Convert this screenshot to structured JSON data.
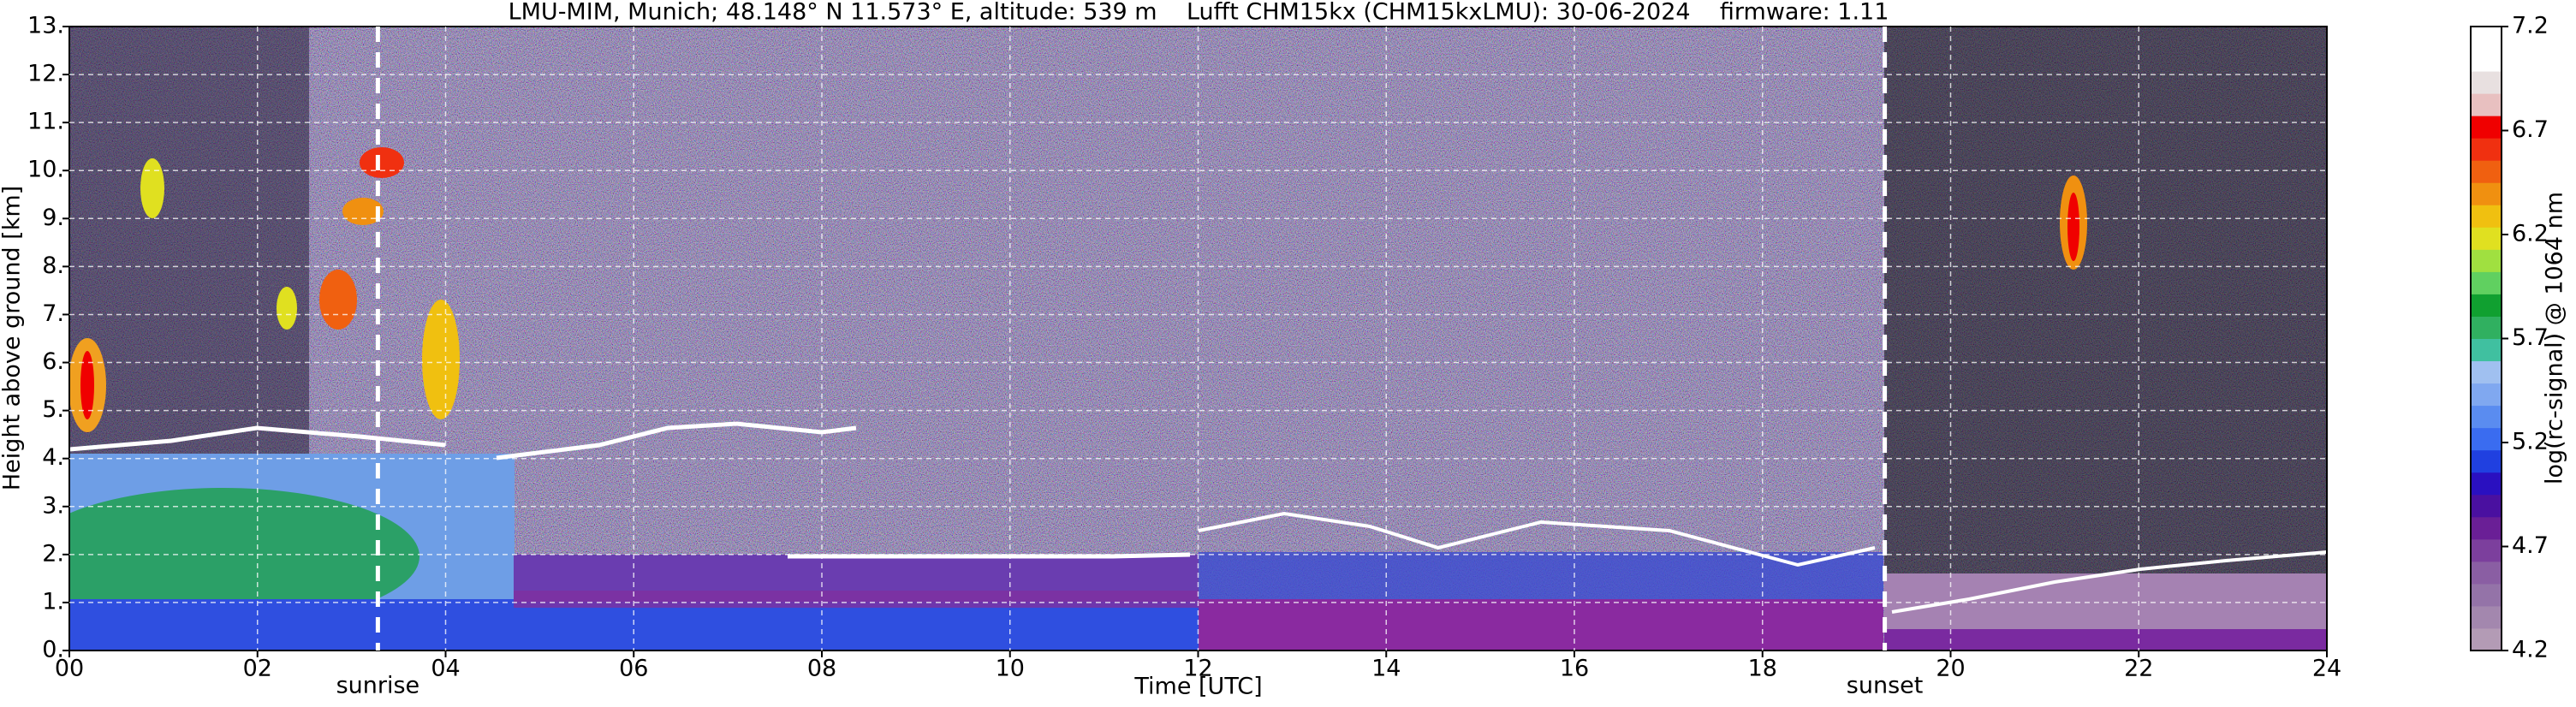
{
  "chart_data": {
    "type": "heatmap",
    "title": "LMU-MIM, Munich; 48.148° N 11.573° E, altitude: 539 m    Lufft CHM15kx (CHM15kxLMU): 30-06-2024    firmware: 1.11",
    "x_label": "Time [UTC]",
    "y_label": "Height above ground [km]",
    "xlim": [
      0,
      24
    ],
    "xticks": [
      {
        "value": 0,
        "label": "00"
      },
      {
        "value": 2,
        "label": "02"
      },
      {
        "value": 4,
        "label": "04"
      },
      {
        "value": 6,
        "label": "06"
      },
      {
        "value": 8,
        "label": "08"
      },
      10,
      12,
      14,
      16,
      18,
      20,
      22,
      24
    ],
    "ylim": [
      0,
      13
    ],
    "yticks": [
      {
        "value": 0,
        "label": "0."
      },
      {
        "value": 1,
        "label": "1."
      },
      {
        "value": 2,
        "label": "2."
      },
      {
        "value": 3,
        "label": "3."
      },
      {
        "value": 4,
        "label": "4."
      },
      {
        "value": 5,
        "label": "5."
      },
      {
        "value": 6,
        "label": "6."
      },
      {
        "value": 7,
        "label": "7."
      },
      {
        "value": 8,
        "label": "8."
      },
      {
        "value": 9,
        "label": "9."
      },
      {
        "value": 10,
        "label": "10."
      },
      {
        "value": 11,
        "label": "11."
      },
      {
        "value": 12,
        "label": "12."
      },
      {
        "value": 13,
        "label": "13."
      }
    ],
    "grid": true,
    "colorbar": {
      "label": "log(rc-signal) @ 1064 nm",
      "lim": [
        4.2,
        7.2
      ],
      "ticks": [
        4.2,
        4.7,
        5.2,
        5.7,
        6.2,
        6.7,
        7.2
      ],
      "colors": [
        "#b39bb5",
        "#a387ae",
        "#9473a8",
        "#8a5ea3",
        "#7c3f9d",
        "#6a1f96",
        "#4a10a0",
        "#2a10c0",
        "#2040e0",
        "#3a6cf0",
        "#5a8cf0",
        "#80a8f0",
        "#a0c0f0",
        "#40c0a0",
        "#30b060",
        "#10a030",
        "#60d060",
        "#a0e040",
        "#e0e020",
        "#f0c010",
        "#f09010",
        "#f06010",
        "#f03010",
        "#f00000",
        "#e8c0c0",
        "#e8e0e0",
        "#ffffff",
        "#ffffff"
      ]
    },
    "annotations": [
      {
        "text": "sunrise",
        "x": 3.28
      },
      {
        "text": "sunset",
        "x": 19.3
      }
    ]
  }
}
